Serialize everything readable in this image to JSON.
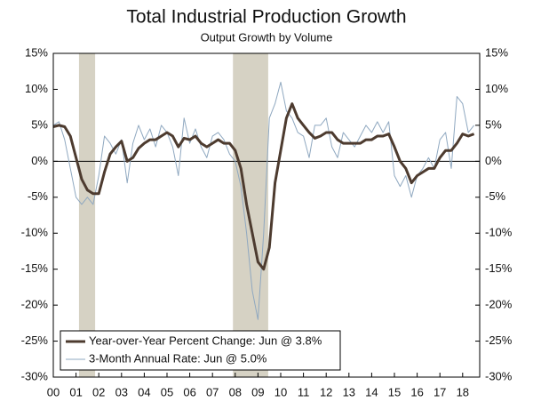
{
  "chart_data": {
    "type": "line",
    "title": "Total Industrial Production Growth",
    "subtitle": "Output Growth by Volume",
    "x": [
      2000,
      2000.25,
      2000.5,
      2000.75,
      2001,
      2001.25,
      2001.5,
      2001.75,
      2002,
      2002.25,
      2002.5,
      2002.75,
      2003,
      2003.25,
      2003.5,
      2003.75,
      2004,
      2004.25,
      2004.5,
      2004.75,
      2005,
      2005.25,
      2005.5,
      2005.75,
      2006,
      2006.25,
      2006.5,
      2006.75,
      2007,
      2007.25,
      2007.5,
      2007.75,
      2008,
      2008.25,
      2008.5,
      2008.75,
      2009,
      2009.25,
      2009.5,
      2009.75,
      2010,
      2010.25,
      2010.5,
      2010.75,
      2011,
      2011.25,
      2011.5,
      2011.75,
      2012,
      2012.25,
      2012.5,
      2012.75,
      2013,
      2013.25,
      2013.5,
      2013.75,
      2014,
      2014.25,
      2014.5,
      2014.75,
      2015,
      2015.25,
      2015.5,
      2015.75,
      2016,
      2016.25,
      2016.5,
      2016.75,
      2017,
      2017.25,
      2017.5,
      2017.75,
      2018,
      2018.25,
      2018.5
    ],
    "series": [
      {
        "name": "Year-over-Year Percent Change: Jun @ 3.8%",
        "color": "#4d3b2f",
        "width": 3,
        "values": [
          4.8,
          5.0,
          4.8,
          3.5,
          0.5,
          -2.5,
          -4.0,
          -4.5,
          -4.5,
          -1.5,
          1.0,
          2.0,
          2.8,
          0.0,
          0.5,
          1.8,
          2.5,
          3.0,
          3.0,
          3.5,
          4.0,
          3.5,
          2.0,
          3.2,
          3.0,
          3.5,
          2.5,
          2.0,
          2.5,
          3.0,
          2.5,
          2.5,
          1.5,
          -1.0,
          -6.0,
          -10.0,
          -14.0,
          -15.0,
          -12.0,
          -3.0,
          1.5,
          6.0,
          8.0,
          6.0,
          5.0,
          4.0,
          3.2,
          3.5,
          4.0,
          4.0,
          3.0,
          2.5,
          2.5,
          2.5,
          2.5,
          3.0,
          3.0,
          3.5,
          3.5,
          3.8,
          2.0,
          0.0,
          -1.0,
          -3.0,
          -2.0,
          -1.5,
          -1.0,
          -1.0,
          0.5,
          1.5,
          1.5,
          2.5,
          3.8,
          3.5,
          3.8
        ]
      },
      {
        "name": "3-Month Annual Rate: Jun @ 5.0%",
        "color": "#8fa8c0",
        "width": 1,
        "values": [
          5.0,
          5.5,
          3.0,
          -1.0,
          -5.0,
          -6.0,
          -5.0,
          -6.0,
          -2.0,
          3.5,
          2.5,
          1.0,
          3.0,
          -3.0,
          2.5,
          5.0,
          3.0,
          4.5,
          2.0,
          5.0,
          4.0,
          2.0,
          -2.0,
          6.0,
          2.5,
          4.5,
          2.0,
          0.5,
          3.5,
          4.0,
          3.0,
          1.0,
          0.0,
          -3.5,
          -10.0,
          -18.0,
          -22.0,
          -10.0,
          6.0,
          8.0,
          11.0,
          7.0,
          6.0,
          4.0,
          3.5,
          0.5,
          5.0,
          5.0,
          6.0,
          2.0,
          0.5,
          4.0,
          3.0,
          2.0,
          3.5,
          5.0,
          4.0,
          5.5,
          4.0,
          5.5,
          -2.0,
          -3.5,
          -2.0,
          -5.0,
          -2.0,
          -1.0,
          0.5,
          -1.0,
          3.0,
          4.0,
          -1.0,
          9.0,
          8.0,
          4.0,
          5.0
        ]
      }
    ],
    "recessions": [
      [
        2001.13,
        2001.84
      ],
      [
        2007.9,
        2009.45
      ]
    ],
    "recession_color": "#d6d2c4",
    "xlim": [
      2000,
      2018.75
    ],
    "xticks": [
      {
        "value": 2000,
        "label": "00"
      },
      {
        "value": 2001,
        "label": "01"
      },
      {
        "value": 2002,
        "label": "02"
      },
      {
        "value": 2003,
        "label": "03"
      },
      {
        "value": 2004,
        "label": "04"
      },
      {
        "value": 2005,
        "label": "05"
      },
      {
        "value": 2006,
        "label": "06"
      },
      {
        "value": 2007,
        "label": "07"
      },
      {
        "value": 2008,
        "label": "08"
      },
      {
        "value": 2009,
        "label": "09"
      },
      {
        "value": 2010,
        "label": "10"
      },
      {
        "value": 2011,
        "label": "11"
      },
      {
        "value": 2012,
        "label": "12"
      },
      {
        "value": 2013,
        "label": "13"
      },
      {
        "value": 2014,
        "label": "14"
      },
      {
        "value": 2015,
        "label": "15"
      },
      {
        "value": 2016,
        "label": "16"
      },
      {
        "value": 2017,
        "label": "17"
      },
      {
        "value": 2018,
        "label": "18"
      }
    ],
    "ylim": [
      -30,
      15
    ],
    "yticks": [
      {
        "value": 15,
        "label": "15%"
      },
      {
        "value": 10,
        "label": "10%"
      },
      {
        "value": 5,
        "label": "5%"
      },
      {
        "value": 0,
        "label": "0%"
      },
      {
        "value": -5,
        "label": "-5%"
      },
      {
        "value": -10,
        "label": "-10%"
      },
      {
        "value": -15,
        "label": "-15%"
      },
      {
        "value": -20,
        "label": "-20%"
      },
      {
        "value": -25,
        "label": "-25%"
      },
      {
        "value": -30,
        "label": "-30%"
      }
    ],
    "legend": "lower left"
  }
}
